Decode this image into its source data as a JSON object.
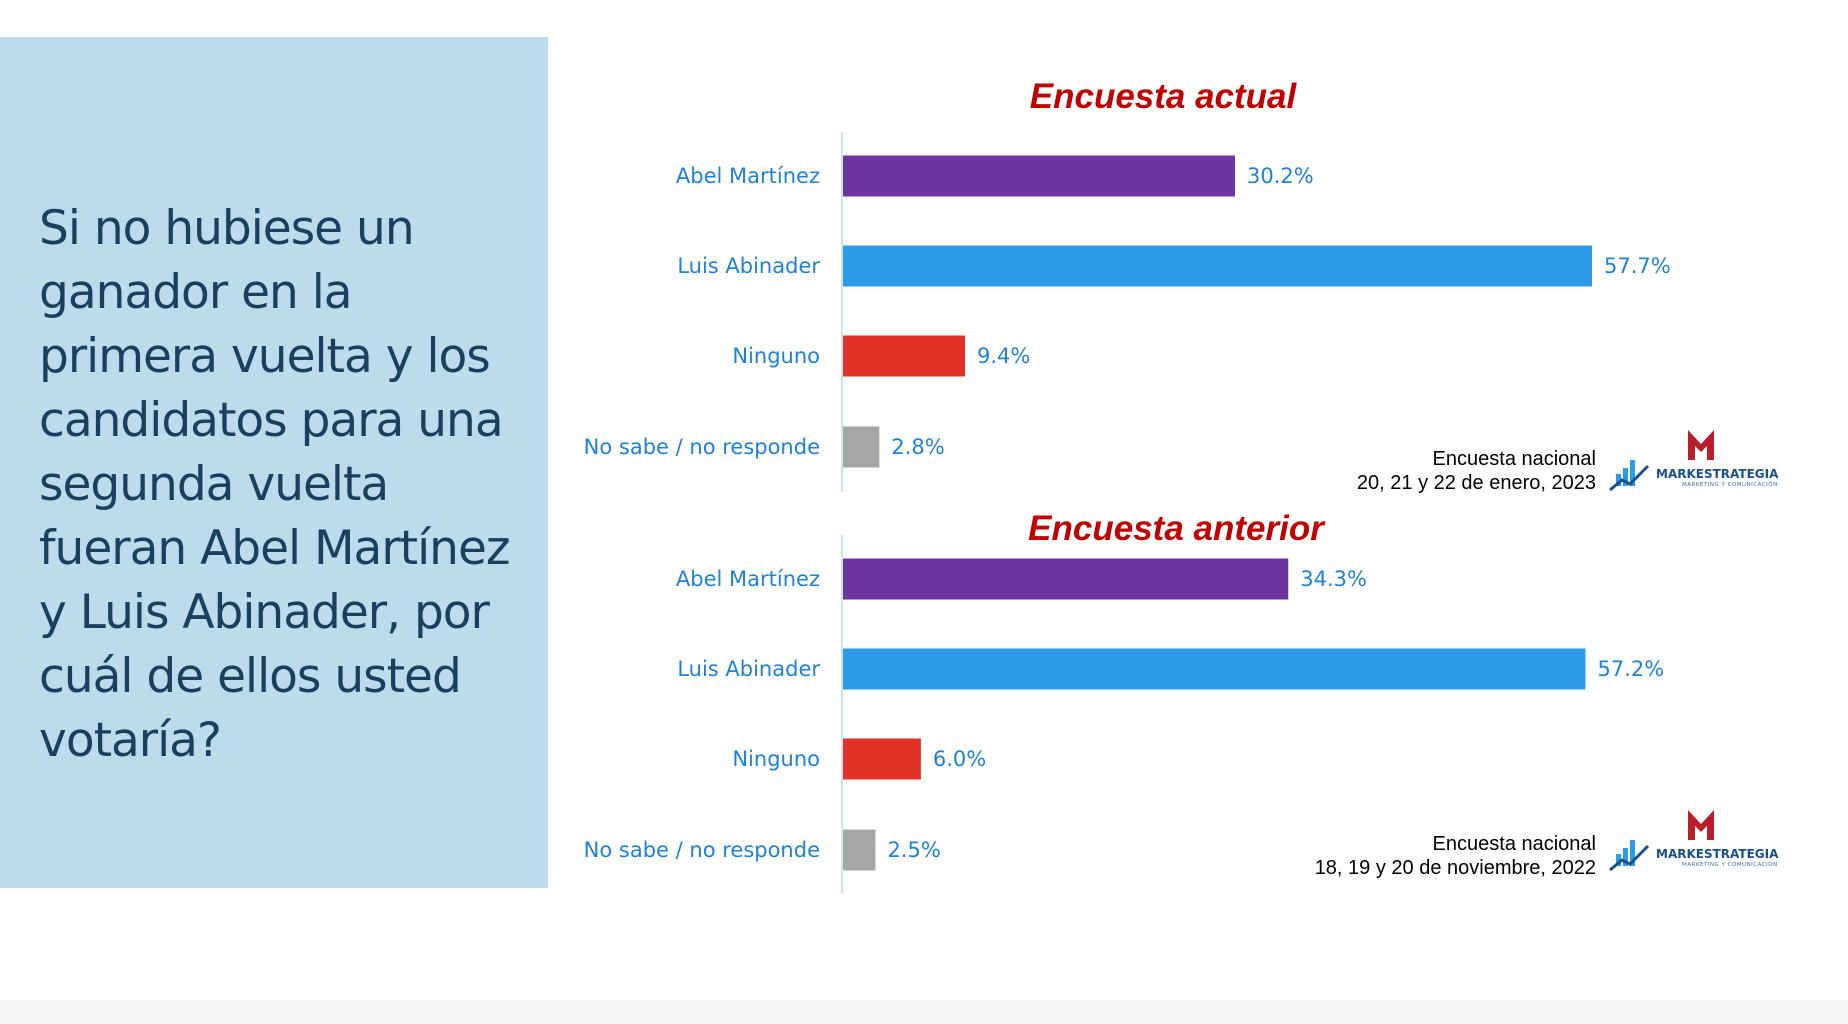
{
  "question": "Si no hubiese un ganador en la primera vuelta y los candidatos para una segunda vuelta fueran Abel Martínez y Luis Abinader, por cuál de ellos usted votaría?",
  "colors": {
    "panel_bg": "#bcdbeb",
    "question_text": "#1b3f5e",
    "title_red": "#c00000",
    "label_blue": "#1f82d6",
    "abel": "#6d33a0",
    "luis": "#2b9bea",
    "ninguno": "#e03226",
    "nosabe": "#a6a6a6"
  },
  "logo": {
    "name": "MARKESTRATEGIA",
    "tagline": "MARKETING Y COMUNICACIÓN",
    "icon": "bar-chart-arrow-m-logo"
  },
  "chart_data": [
    {
      "type": "bar",
      "orientation": "horizontal",
      "title": "Encuesta actual",
      "categories": [
        "Abel Martínez",
        "Luis Abinader",
        "Ninguno",
        "No sabe / no responde"
      ],
      "values": [
        30.2,
        57.7,
        9.4,
        2.8
      ],
      "value_labels": [
        "30.2%",
        "57.7%",
        "9.4%",
        "2.8%"
      ],
      "source": [
        "Encuesta nacional",
        "20, 21 y 22 de enero, 2023"
      ]
    },
    {
      "type": "bar",
      "orientation": "horizontal",
      "title": "Encuesta anterior",
      "categories": [
        "Abel Martínez",
        "Luis Abinader",
        "Ninguno",
        "No sabe / no responde"
      ],
      "values": [
        34.3,
        57.2,
        6.0,
        2.5
      ],
      "value_labels": [
        "34.3%",
        "57.2%",
        "6.0%",
        "2.5%"
      ],
      "source": [
        "Encuesta nacional",
        "18, 19 y 20 de noviembre, 2022"
      ]
    }
  ]
}
